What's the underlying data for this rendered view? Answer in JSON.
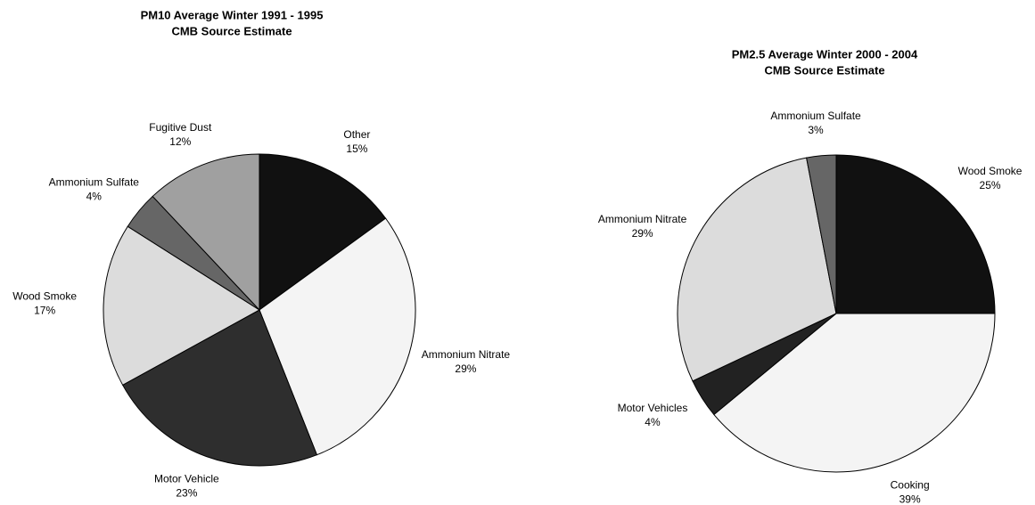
{
  "chart_data": [
    {
      "type": "pie",
      "title": "PM10 Average Winter 1991 - 1995",
      "subtitle": "CMB Source Estimate",
      "categories": [
        "Other",
        "Ammonium Nitrate",
        "Motor Vehicle",
        "Wood Smoke",
        "Ammonium Sulfate",
        "Fugitive Dust"
      ],
      "values": [
        15,
        29,
        23,
        17,
        4,
        12
      ],
      "value_labels": [
        "15%",
        "29%",
        "23%",
        "17%",
        "4%",
        "12%"
      ],
      "colors": [
        "#111111",
        "#f4f4f4",
        "#2e2e2e",
        "#dcdcdc",
        "#666666",
        "#a0a0a0"
      ]
    },
    {
      "type": "pie",
      "title": "PM2.5 Average Winter 2000 - 2004",
      "subtitle": "CMB Source Estimate",
      "categories": [
        "Wood Smoke",
        "Cooking",
        "Motor Vehicles",
        "Ammonium Nitrate",
        "Ammonium Sulfate"
      ],
      "values": [
        25,
        39,
        4,
        29,
        3
      ],
      "value_labels": [
        "25%",
        "39%",
        "4%",
        "29%",
        "3%"
      ],
      "colors": [
        "#111111",
        "#f4f4f4",
        "#222222",
        "#dcdcdc",
        "#666666"
      ]
    }
  ]
}
